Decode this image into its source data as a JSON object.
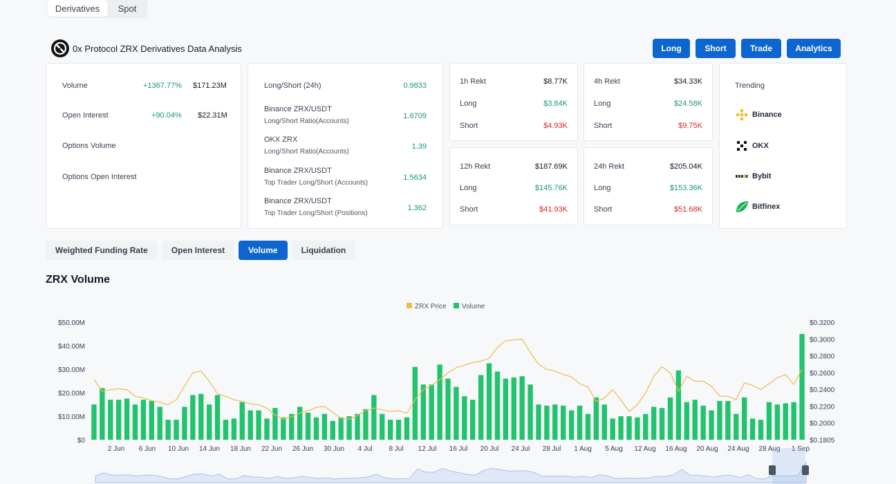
{
  "market_tabs": [
    {
      "label": "Derivatives",
      "active": true
    },
    {
      "label": "Spot",
      "active": false
    }
  ],
  "header": {
    "title": "0x Protocol ZRX Derivatives Data Analysis",
    "logo_icon": "zrx-logo-icon",
    "buttons": [
      "Long",
      "Short",
      "Trade",
      "Analytics"
    ]
  },
  "overview": [
    {
      "label": "Volume",
      "change": "+1367.77%",
      "value": "$171.23M"
    },
    {
      "label": "Open Interest",
      "change": "+90.04%",
      "value": "$22.31M"
    },
    {
      "label": "Options Volume",
      "change": "",
      "value": ""
    },
    {
      "label": "Options Open Interest",
      "change": "",
      "value": ""
    }
  ],
  "ratios": [
    {
      "label": "Long/Short (24h)",
      "sub": "",
      "value": "0.9833"
    },
    {
      "label": "Binance ZRX/USDT",
      "sub": "Long/Short Ratio(Accounts)",
      "value": "1.6709"
    },
    {
      "label": "OKX ZRX",
      "sub": "Long/Short Ratio(Accounts)",
      "value": "1.39"
    },
    {
      "label": "Binance ZRX/USDT",
      "sub": "Top Trader Long/Short (Accounts)",
      "value": "1.5634"
    },
    {
      "label": "Binance ZRX/USDT",
      "sub": "Top Trader Long/Short (Positions)",
      "value": "1.362"
    }
  ],
  "rekt": {
    "h1": {
      "title": "1h Rekt",
      "total": "$8.77K",
      "long_label": "Long",
      "long": "$3.84K",
      "short_label": "Short",
      "short": "$4.93K"
    },
    "h4": {
      "title": "4h Rekt",
      "total": "$34.33K",
      "long_label": "Long",
      "long": "$24.58K",
      "short_label": "Short",
      "short": "$9.75K"
    },
    "h12": {
      "title": "12h Rekt",
      "total": "$187.69K",
      "long_label": "Long",
      "long": "$145.76K",
      "short_label": "Short",
      "short": "$41.93K"
    },
    "h24": {
      "title": "24h Rekt",
      "total": "$205.04K",
      "long_label": "Long",
      "long": "$153.36K",
      "short_label": "Short",
      "short": "$51.68K"
    }
  },
  "trending": {
    "title": "Trending",
    "items": [
      {
        "name": "Binance",
        "icon": "binance-icon"
      },
      {
        "name": "OKX",
        "icon": "okx-icon"
      },
      {
        "name": "Bybit",
        "icon": "bybit-icon"
      },
      {
        "name": "Bitfinex",
        "icon": "bitfinex-icon"
      }
    ]
  },
  "chart_tabs": [
    {
      "label": "Weighted Funding Rate",
      "active": false
    },
    {
      "label": "Open Interest",
      "active": false
    },
    {
      "label": "Volume",
      "active": true
    },
    {
      "label": "Liquidation",
      "active": false
    }
  ],
  "section_title": "ZRX Volume",
  "colors": {
    "volume": "#21c36c",
    "price": "#f2b94b",
    "accent": "#0d66d0"
  },
  "chart_data": {
    "type": "bar",
    "title": "",
    "legend": [
      {
        "name": "ZRX Price",
        "color": "#f2b94b"
      },
      {
        "name": "Volume",
        "color": "#21c36c"
      }
    ],
    "legend_placement": "top-center",
    "y_left": {
      "ticks": [
        "$0",
        "$10.00M",
        "$20.00M",
        "$30.00M",
        "$40.00M",
        "$50.00M"
      ],
      "range": [
        0,
        50
      ]
    },
    "y_right": {
      "ticks": [
        "$0.1805",
        "$0.2000",
        "$0.2200",
        "$0.2400",
        "$0.2600",
        "$0.2800",
        "$0.3000",
        "$0.3200"
      ],
      "range": [
        0.1805,
        0.32
      ]
    },
    "x_ticks": [
      "2 Jun",
      "6 Jun",
      "10 Jun",
      "14 Jun",
      "18 Jun",
      "22 Jun",
      "26 Jun",
      "30 Jun",
      "4 Jul",
      "8 Jul",
      "12 Jul",
      "16 Jul",
      "20 Jul",
      "24 Jul",
      "28 Jul",
      "1 Aug",
      "5 Aug",
      "12 Aug",
      "16 Aug",
      "20 Aug",
      "24 Aug",
      "28 Aug",
      "1 Sep"
    ],
    "series": [
      {
        "name": "Volume",
        "unit": "M",
        "values": [
          15,
          22,
          17,
          17,
          17.5,
          15,
          17,
          16.5,
          14,
          8.5,
          8.5,
          14,
          19,
          19.5,
          15,
          19,
          8.5,
          9,
          16,
          12.5,
          12.5,
          9,
          13.5,
          9.5,
          11,
          14,
          11.5,
          9.5,
          11,
          8,
          9.5,
          10,
          11,
          13,
          19,
          11,
          8.5,
          8.5,
          9.5,
          31,
          23.5,
          23.5,
          32,
          26,
          22.5,
          18.5,
          17,
          27.5,
          32.5,
          29,
          26,
          26.5,
          27,
          23.5,
          15,
          14.5,
          15,
          14.5,
          12.5,
          14.5,
          11,
          18,
          15,
          9,
          10,
          10,
          9.5,
          11,
          14,
          13.5,
          18,
          29.5,
          16,
          17,
          14.5,
          12.5,
          16.5,
          16.5,
          11,
          18,
          9,
          8.5,
          16,
          15,
          15.5,
          16,
          45
        ]
      },
      {
        "name": "ZRX Price",
        "unit": "$",
        "values": [
          0.252,
          0.238,
          0.24,
          0.241,
          0.24,
          0.232,
          0.23,
          0.227,
          0.225,
          0.222,
          0.228,
          0.244,
          0.26,
          0.262,
          0.25,
          0.235,
          0.232,
          0.228,
          0.226,
          0.223,
          0.222,
          0.218,
          0.21,
          0.205,
          0.208,
          0.212,
          0.215,
          0.219,
          0.22,
          0.213,
          0.206,
          0.205,
          0.209,
          0.215,
          0.218,
          0.216,
          0.214,
          0.215,
          0.212,
          0.228,
          0.24,
          0.245,
          0.252,
          0.26,
          0.266,
          0.269,
          0.272,
          0.274,
          0.277,
          0.29,
          0.298,
          0.299,
          0.3,
          0.284,
          0.27,
          0.264,
          0.262,
          0.258,
          0.255,
          0.247,
          0.243,
          0.226,
          0.23,
          0.24,
          0.228,
          0.214,
          0.222,
          0.236,
          0.256,
          0.267,
          0.26,
          0.238,
          0.256,
          0.25,
          0.25,
          0.244,
          0.232,
          0.232,
          0.228,
          0.248,
          0.245,
          0.24,
          0.247,
          0.254,
          0.258,
          0.246,
          0.264
        ]
      }
    ]
  }
}
